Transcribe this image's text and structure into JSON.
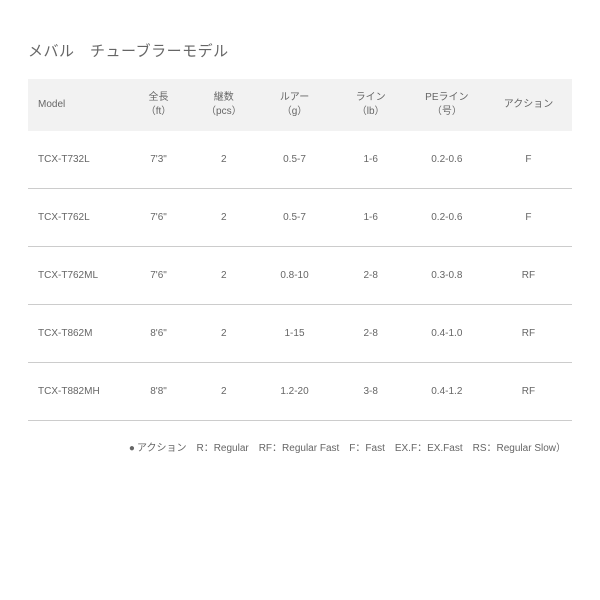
{
  "title": "メバル　チューブラーモデル",
  "columns": [
    {
      "line1": "Model",
      "line2": ""
    },
    {
      "line1": "全長",
      "line2": "（ft）"
    },
    {
      "line1": "継数",
      "line2": "（pcs）"
    },
    {
      "line1": "ルアー",
      "line2": "（g）"
    },
    {
      "line1": "ライン",
      "line2": "（lb）"
    },
    {
      "line1": "PEライン",
      "line2": "（号）"
    },
    {
      "line1": "アクション",
      "line2": ""
    }
  ],
  "rows": [
    [
      "TCX-T732L",
      "7'3\"",
      "2",
      "0.5-7",
      "1-6",
      "0.2-0.6",
      "F"
    ],
    [
      "TCX-T762L",
      "7'6\"",
      "2",
      "0.5-7",
      "1-6",
      "0.2-0.6",
      "F"
    ],
    [
      "TCX-T762ML",
      "7'6\"",
      "2",
      "0.8-10",
      "2-8",
      "0.3-0.8",
      "RF"
    ],
    [
      "TCX-T862M",
      "8'6\"",
      "2",
      "1-15",
      "2-8",
      "0.4-1.0",
      "RF"
    ],
    [
      "TCX-T882MH",
      "8'8\"",
      "2",
      "1.2-20",
      "3-8",
      "0.4-1.2",
      "RF"
    ]
  ],
  "legend": {
    "bullet": "●",
    "text": "アクション　R：Regular　RF：Regular Fast　F：Fast　EX.F：EX.Fast　RS：Regular Slow）"
  },
  "colors": {
    "background": "#ffffff",
    "header_bg": "#f2f2f2",
    "text": "#666666",
    "border": "#cccccc"
  }
}
